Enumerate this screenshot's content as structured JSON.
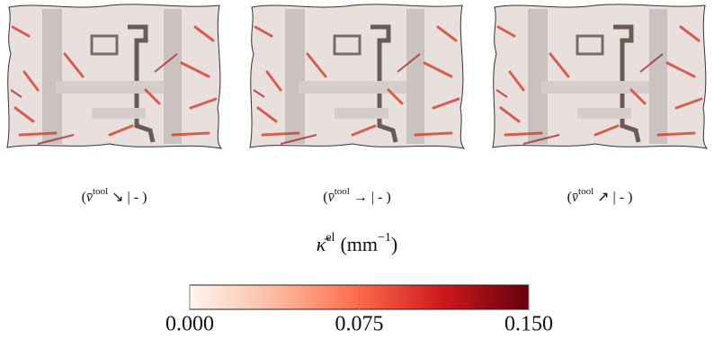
{
  "panels": [
    {
      "caption": {
        "open": "(",
        "symbol": "v̄",
        "sup": "tool",
        "rest": "↘ | - )"
      }
    },
    {
      "caption": {
        "open": "(",
        "symbol": "v̄",
        "sup": "tool",
        "rest": "→ | - )"
      }
    },
    {
      "caption": {
        "open": "(",
        "symbol": "v̄",
        "sup": "tool",
        "rest": "↗ | - )"
      }
    }
  ],
  "colorbar": {
    "label": {
      "symbol": "κ̄",
      "sup": "el",
      "unit": "(mm",
      "unit_sup": "−1",
      "close": ")"
    },
    "lim": [
      0,
      0.15
    ],
    "ticks": [
      {
        "value": 0,
        "label": "0.000"
      },
      {
        "value": 0.075,
        "label": "0.075"
      },
      {
        "value": 0.15,
        "label": "0.150"
      }
    ],
    "colormap": [
      "#fff5f0",
      "#fcbba1",
      "#fb6a4a",
      "#cb181d",
      "#67000d"
    ]
  }
}
